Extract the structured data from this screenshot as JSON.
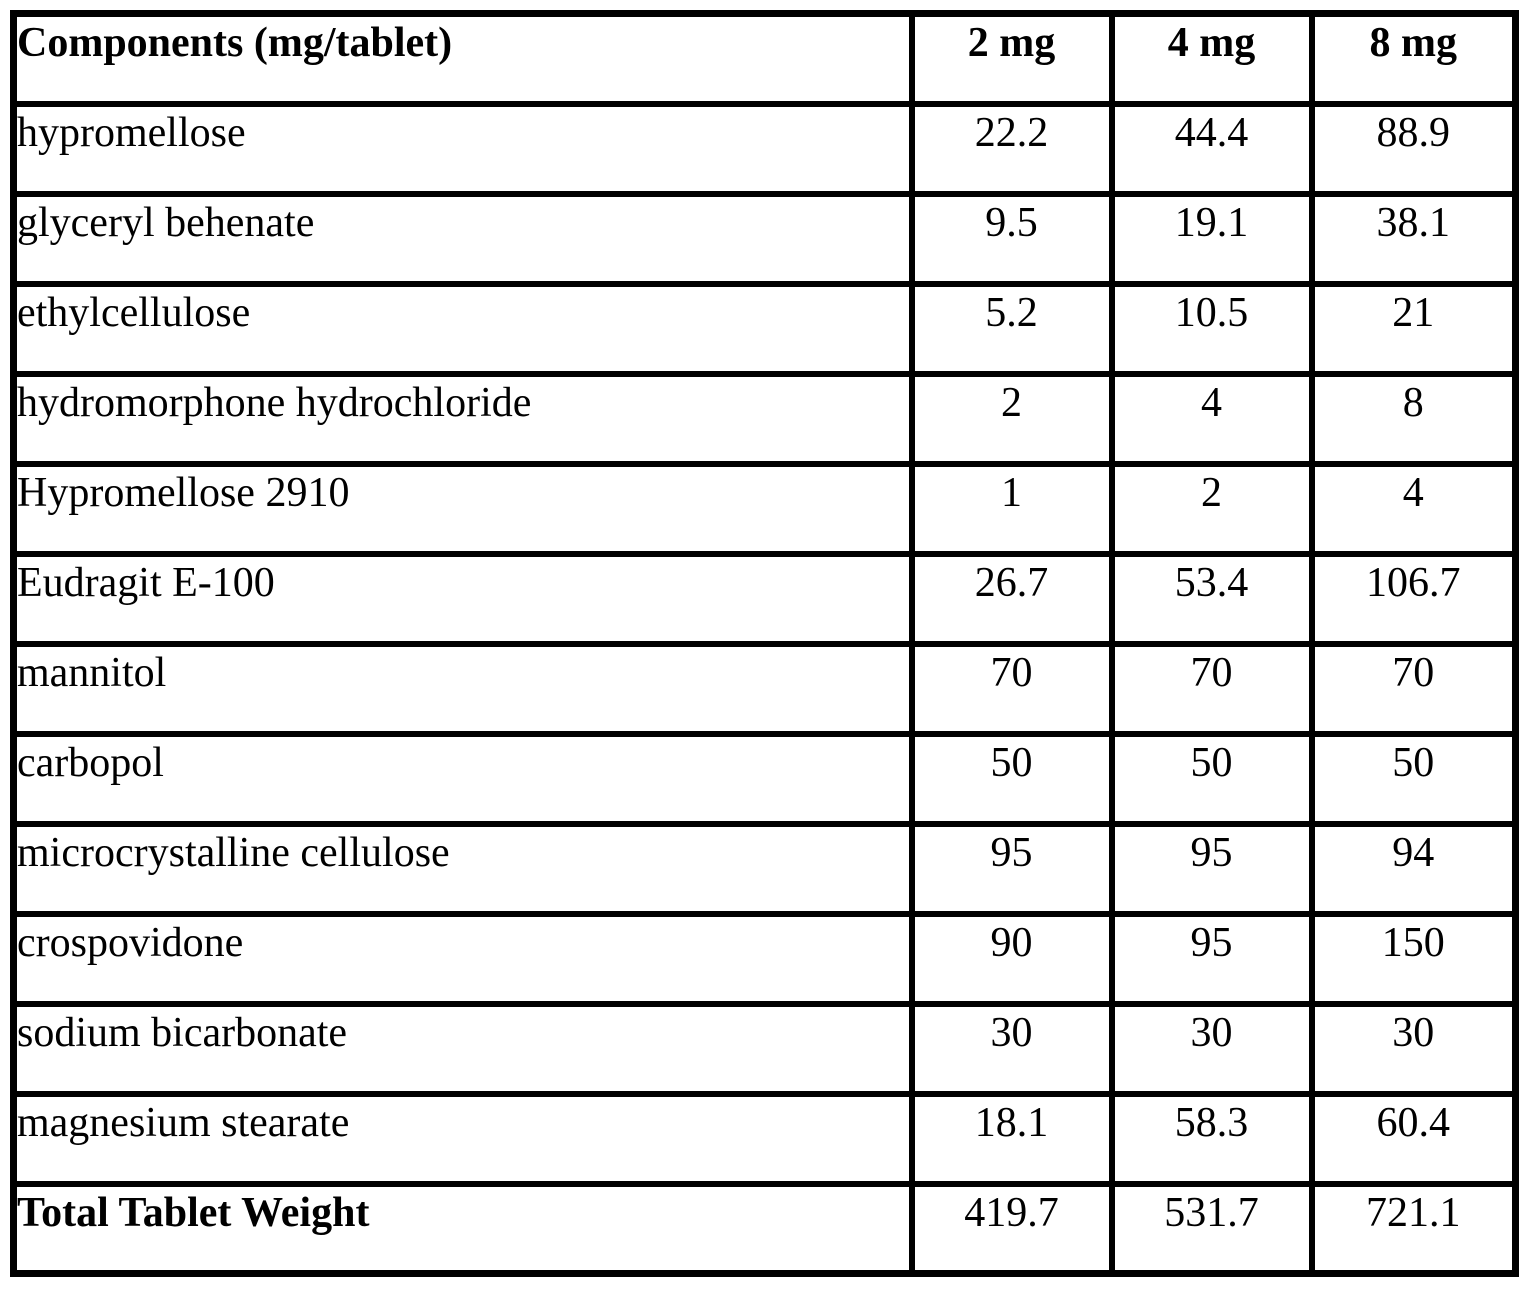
{
  "colors": {
    "background": "#ffffff",
    "border": "#000000",
    "text": "#000000"
  },
  "table": {
    "header": {
      "components_label": "Components (mg/tablet)",
      "dose_labels": [
        "2 mg",
        "4 mg",
        "8 mg"
      ]
    },
    "rows": [
      {
        "component": "hypromellose",
        "values": [
          "22.2",
          "44.4",
          "88.9"
        ]
      },
      {
        "component": "glyceryl behenate",
        "values": [
          "9.5",
          "19.1",
          "38.1"
        ]
      },
      {
        "component": "ethylcellulose",
        "values": [
          "5.2",
          "10.5",
          "21"
        ]
      },
      {
        "component": "hydromorphone hydrochloride",
        "values": [
          "2",
          "4",
          "8"
        ]
      },
      {
        "component": "Hypromellose 2910",
        "values": [
          "1",
          "2",
          "4"
        ]
      },
      {
        "component": "Eudragit E-100",
        "values": [
          "26.7",
          "53.4",
          "106.7"
        ]
      },
      {
        "component": "mannitol",
        "values": [
          "70",
          "70",
          "70"
        ]
      },
      {
        "component": "carbopol",
        "values": [
          "50",
          "50",
          "50"
        ]
      },
      {
        "component": "microcrystalline cellulose",
        "values": [
          "95",
          "95",
          "94"
        ]
      },
      {
        "component": "crospovidone",
        "values": [
          "90",
          "95",
          "150"
        ]
      },
      {
        "component": "sodium bicarbonate",
        "values": [
          "30",
          "30",
          "30"
        ]
      },
      {
        "component": "magnesium stearate",
        "values": [
          "18.1",
          "58.3",
          "60.4"
        ]
      }
    ],
    "total_row": {
      "component": "Total Tablet Weight",
      "values": [
        "419.7",
        "531.7",
        "721.1"
      ]
    }
  }
}
